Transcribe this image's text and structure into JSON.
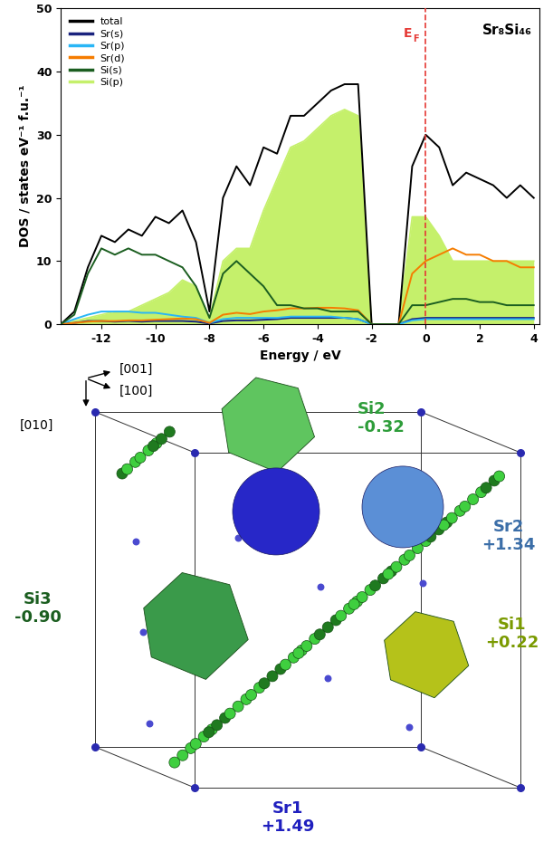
{
  "chart_data": {
    "type": "line",
    "xlabel": "Energy / eV",
    "ylabel": "DOS / states eV⁻¹ f.u.⁻¹",
    "x": [
      -13.5,
      -13,
      -12.5,
      -12,
      -11.5,
      -11,
      -10.5,
      -10,
      -9.5,
      -9,
      -8.5,
      -8,
      -7.5,
      -7,
      -6.5,
      -6,
      -5.5,
      -5,
      -4.5,
      -4,
      -3.5,
      -3,
      -2.5,
      -2,
      -1.5,
      -1,
      -0.5,
      0,
      0.5,
      1,
      1.5,
      2,
      2.5,
      3,
      3.5,
      4
    ],
    "series": [
      {
        "name": "Si(p)",
        "color": "#c5f06b",
        "type": "area",
        "values": [
          0,
          0.5,
          1,
          1.5,
          2,
          2,
          3,
          4,
          5,
          7,
          6,
          1,
          10,
          12,
          12,
          18,
          23,
          28,
          29,
          31,
          33,
          34,
          33,
          0,
          0,
          0,
          17,
          17,
          14,
          10,
          10,
          10,
          10,
          10,
          10,
          10
        ]
      },
      {
        "name": "total",
        "color": "#000000",
        "values": [
          0,
          2,
          9,
          14,
          13,
          15,
          14,
          17,
          16,
          18,
          13,
          2,
          20,
          25,
          22,
          28,
          27,
          33,
          33,
          35,
          37,
          38,
          38,
          0,
          0,
          0,
          25,
          30,
          28,
          22,
          24,
          23,
          22,
          20,
          22,
          20
        ]
      },
      {
        "name": "Sr(s)",
        "color": "#1a237e",
        "values": [
          0,
          0.2,
          0.5,
          0.5,
          0.4,
          0.5,
          0.4,
          0.5,
          0.5,
          0.5,
          0.4,
          0.1,
          0.5,
          0.6,
          0.6,
          0.7,
          0.8,
          1,
          1,
          1,
          1,
          1,
          0.8,
          0,
          0,
          0,
          0.8,
          1,
          1,
          1,
          1,
          1,
          1,
          1,
          1,
          1
        ]
      },
      {
        "name": "Sr(p)",
        "color": "#29b6f6",
        "values": [
          0,
          0.8,
          1.5,
          2,
          2,
          2,
          1.8,
          1.8,
          1.5,
          1.2,
          1,
          0.2,
          0.8,
          1,
          1,
          1,
          1,
          1.2,
          1.2,
          1.2,
          1.2,
          1,
          0.8,
          0,
          0,
          0,
          0.6,
          0.8,
          0.8,
          0.8,
          0.8,
          0.8,
          0.8,
          0.8,
          0.8,
          0.8
        ]
      },
      {
        "name": "Sr(d)",
        "color": "#f57c00",
        "values": [
          0,
          0.2,
          0.4,
          0.5,
          0.5,
          0.6,
          0.6,
          0.7,
          0.8,
          0.9,
          0.8,
          0.2,
          1.5,
          1.8,
          1.6,
          2,
          2.2,
          2.5,
          2.5,
          2.6,
          2.6,
          2.5,
          2.2,
          0,
          0,
          0,
          8,
          10,
          11,
          12,
          11,
          11,
          10,
          10,
          9,
          9
        ]
      },
      {
        "name": "Si(s)",
        "color": "#1b5e20",
        "values": [
          0,
          1.5,
          8,
          12,
          11,
          12,
          11,
          11,
          10,
          9,
          6,
          1,
          8,
          10,
          8,
          6,
          3,
          3,
          2.5,
          2.5,
          2,
          2,
          2,
          0,
          0,
          0,
          3,
          3,
          3.5,
          4,
          4,
          3.5,
          3.5,
          3,
          3,
          3
        ]
      }
    ],
    "legend_order": [
      "total",
      "Sr(s)",
      "Sr(p)",
      "Sr(d)",
      "Si(s)",
      "Si(p)"
    ],
    "xlim": [
      -13.5,
      4.2
    ],
    "ylim": [
      0,
      50
    ],
    "xticks": [
      -12,
      -10,
      -8,
      -6,
      -4,
      -2,
      0,
      2,
      4
    ],
    "yticks": [
      0,
      10,
      20,
      30,
      40,
      50
    ],
    "legend": "upper left",
    "annotations": [
      {
        "text": "Sr₈Si₄₆"
      }
    ],
    "fermi_level": {
      "text": "E",
      "subscript": "F",
      "x": 0,
      "color": "#e53935"
    }
  },
  "diagram": {
    "axes_labels": [
      "[001]",
      "[100]",
      "[010]"
    ],
    "regions": [
      {
        "label": "Si2",
        "charge": "-0.32",
        "kind": "polyhedron",
        "color": "#5fc55f",
        "label_color": "#2e9d3a"
      },
      {
        "label": "Sr2",
        "charge": "+1.34",
        "kind": "sphere",
        "color": "#5b8fd6",
        "label_color": "#3b6ea8"
      },
      {
        "label": "Si1",
        "charge": "+0.22",
        "kind": "polyhedron",
        "color": "#b5c21a",
        "label_color": "#7a9a00"
      },
      {
        "label": "Sr1",
        "charge": "+1.49",
        "kind": "sphere",
        "color": "#2727c8",
        "label_color": "#1f1fbf"
      },
      {
        "label": "Si3",
        "charge": "-0.90",
        "kind": "polyhedron",
        "color": "#3a9a4a",
        "label_color": "#1b5e20"
      }
    ]
  }
}
